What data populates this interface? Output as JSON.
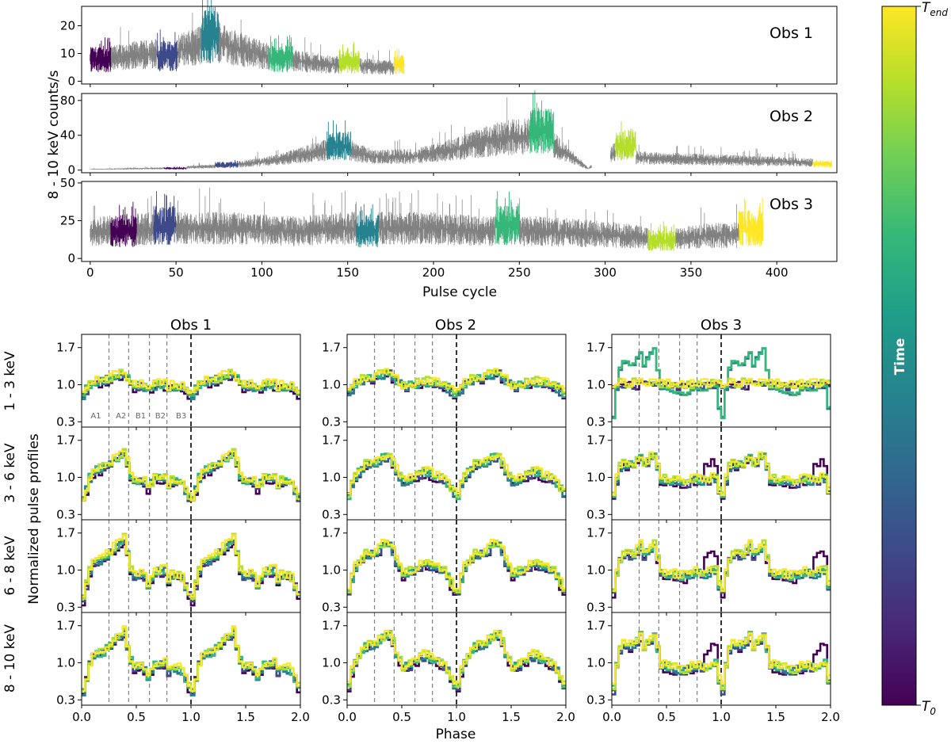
{
  "colors": {
    "viridis": [
      "#440154",
      "#482878",
      "#3e4989",
      "#31688e",
      "#26828e",
      "#1f9e89",
      "#35b779",
      "#6ece58",
      "#b5de2b",
      "#fde725"
    ],
    "raw": "#808080",
    "dashed": "#808080",
    "boundary": "#000000"
  },
  "colorbar": {
    "label": "Time",
    "top_label": "T_end",
    "bottom_label": "T_0"
  },
  "chart_data": [
    {
      "type": "line",
      "panel": "light-curves",
      "ylabel": "8 - 10 keV counts/s",
      "xlabel": "Pulse cycle",
      "xlim": [
        -5,
        435
      ],
      "xticks": [
        0,
        50,
        100,
        150,
        200,
        250,
        300,
        350,
        400
      ],
      "grid": false,
      "series": [
        {
          "name": "Obs 1",
          "ylim": [
            -1,
            27
          ],
          "yticks": [
            0,
            10,
            20
          ],
          "x_range": [
            0,
            183
          ],
          "level_profile": [
            [
              0,
              7
            ],
            [
              20,
              9
            ],
            [
              40,
              10
            ],
            [
              60,
              12
            ],
            [
              70,
              15
            ],
            [
              80,
              13
            ],
            [
              90,
              11
            ],
            [
              110,
              8
            ],
            [
              140,
              6
            ],
            [
              170,
              5
            ],
            [
              183,
              5
            ]
          ],
          "colored_segments": [
            {
              "x": [
                0,
                12
              ],
              "level": 8
            },
            {
              "x": [
                39,
                51
              ],
              "level": 9
            },
            {
              "x": [
                65,
                75
              ],
              "level": 16
            },
            {
              "x": [
                104,
                118
              ],
              "level": 8
            },
            {
              "x": [
                145,
                157
              ],
              "level": 7
            },
            {
              "x": [
                177,
                183
              ],
              "level": 6
            }
          ]
        },
        {
          "name": "Obs 2",
          "ylim": [
            -3,
            88
          ],
          "yticks": [
            0,
            40,
            80
          ],
          "x_range": [
            0,
            432
          ],
          "level_profile": [
            [
              0,
              1
            ],
            [
              40,
              2
            ],
            [
              80,
              5
            ],
            [
              110,
              12
            ],
            [
              130,
              20
            ],
            [
              145,
              27
            ],
            [
              165,
              15
            ],
            [
              190,
              16
            ],
            [
              215,
              25
            ],
            [
              235,
              35
            ],
            [
              247,
              38
            ],
            [
              262,
              40
            ],
            [
              290,
              2
            ],
            [
              305,
              20
            ],
            [
              320,
              14
            ],
            [
              360,
              12
            ],
            [
              400,
              10
            ],
            [
              432,
              8
            ]
          ],
          "gap": [
            [
              292,
              303
            ]
          ],
          "colored_segments": [
            {
              "x": [
                43,
                56
              ],
              "level": 2
            },
            {
              "x": [
                73,
                86
              ],
              "level": 6
            },
            {
              "x": [
                138,
                152
              ],
              "level": 28
            },
            {
              "x": [
                256,
                270
              ],
              "level": 45
            },
            {
              "x": [
                306,
                318
              ],
              "level": 28
            },
            {
              "x": [
                421,
                432
              ],
              "level": 7
            }
          ]
        },
        {
          "name": "Obs 3",
          "ylim": [
            -2,
            51
          ],
          "yticks": [
            0,
            25,
            50
          ],
          "x_range": [
            0,
            392
          ],
          "level_profile": [
            [
              0,
              18
            ],
            [
              40,
              20
            ],
            [
              80,
              20
            ],
            [
              120,
              18
            ],
            [
              150,
              20
            ],
            [
              200,
              20
            ],
            [
              230,
              18
            ],
            [
              260,
              18
            ],
            [
              300,
              16
            ],
            [
              335,
              13
            ],
            [
              360,
              15
            ],
            [
              392,
              16
            ]
          ],
          "colored_segments": [
            {
              "x": [
                12,
                27
              ],
              "level": 18
            },
            {
              "x": [
                37,
                50
              ],
              "level": 22
            },
            {
              "x": [
                155,
                168
              ],
              "level": 18
            },
            {
              "x": [
                236,
                250
              ],
              "level": 22
            },
            {
              "x": [
                325,
                341
              ],
              "level": 12
            },
            {
              "x": [
                378,
                392
              ],
              "level": 20
            }
          ]
        }
      ]
    },
    {
      "type": "line",
      "panel": "pulse-profiles",
      "ylabel": "Normalized pulse profiles",
      "xlabel": "Phase",
      "xlim": [
        0,
        2
      ],
      "ylim": [
        0.2,
        1.95
      ],
      "xticks": [
        "0.0",
        "0.5",
        "1.0",
        "1.5",
        "2.0"
      ],
      "yticks": [
        "0.3",
        "1.0",
        "1.7"
      ],
      "columns": [
        "Obs 1",
        "Obs 2",
        "Obs 3"
      ],
      "rows": [
        "1 - 3 keV",
        "3 - 6 keV",
        "6 - 8 keV",
        "8 - 10 keV"
      ],
      "region_boundaries": [
        0.25,
        0.43,
        0.62,
        0.78
      ],
      "period_boundary": 1.0,
      "region_labels": [
        "A1",
        "A2",
        "B1",
        "B2",
        "B3"
      ],
      "region_label_x": [
        0.13,
        0.36,
        0.54,
        0.72,
        0.91
      ],
      "base_shapes": {
        "Obs 1": [
          [
            0.0,
            0.45
          ],
          [
            0.04,
            0.8
          ],
          [
            0.08,
            1.12
          ],
          [
            0.18,
            1.2
          ],
          [
            0.3,
            1.45
          ],
          [
            0.38,
            1.6
          ],
          [
            0.42,
            1.2
          ],
          [
            0.45,
            0.9
          ],
          [
            0.55,
            0.95
          ],
          [
            0.6,
            0.7
          ],
          [
            0.64,
            0.95
          ],
          [
            0.75,
            1.0
          ],
          [
            0.78,
            0.8
          ],
          [
            0.8,
            0.92
          ],
          [
            0.9,
            0.88
          ],
          [
            0.98,
            0.5
          ],
          [
            1.0,
            0.45
          ]
        ],
        "Obs 2": [
          [
            0.0,
            0.55
          ],
          [
            0.05,
            1.0
          ],
          [
            0.15,
            1.3
          ],
          [
            0.25,
            1.35
          ],
          [
            0.32,
            1.5
          ],
          [
            0.38,
            1.55
          ],
          [
            0.43,
            1.2
          ],
          [
            0.5,
            0.9
          ],
          [
            0.6,
            1.0
          ],
          [
            0.7,
            1.15
          ],
          [
            0.78,
            1.05
          ],
          [
            0.88,
            0.95
          ],
          [
            0.98,
            0.55
          ],
          [
            1.0,
            0.55
          ]
        ],
        "Obs 3": [
          [
            0.0,
            0.5
          ],
          [
            0.05,
            1.2
          ],
          [
            0.1,
            1.35
          ],
          [
            0.18,
            1.3
          ],
          [
            0.25,
            1.5
          ],
          [
            0.28,
            1.3
          ],
          [
            0.33,
            1.45
          ],
          [
            0.38,
            1.55
          ],
          [
            0.43,
            0.95
          ],
          [
            0.55,
            0.9
          ],
          [
            0.65,
            0.85
          ],
          [
            0.75,
            0.95
          ],
          [
            0.85,
            0.9
          ],
          [
            0.93,
            1.05
          ],
          [
            0.98,
            0.55
          ],
          [
            1.0,
            0.5
          ]
        ]
      },
      "amplitude": [
        [
          0.35,
          0.8,
          1.0,
          1.0
        ],
        [
          0.4,
          0.75,
          0.95,
          1.0
        ],
        [
          0.05,
          0.75,
          0.9,
          1.0
        ]
      ]
    }
  ]
}
